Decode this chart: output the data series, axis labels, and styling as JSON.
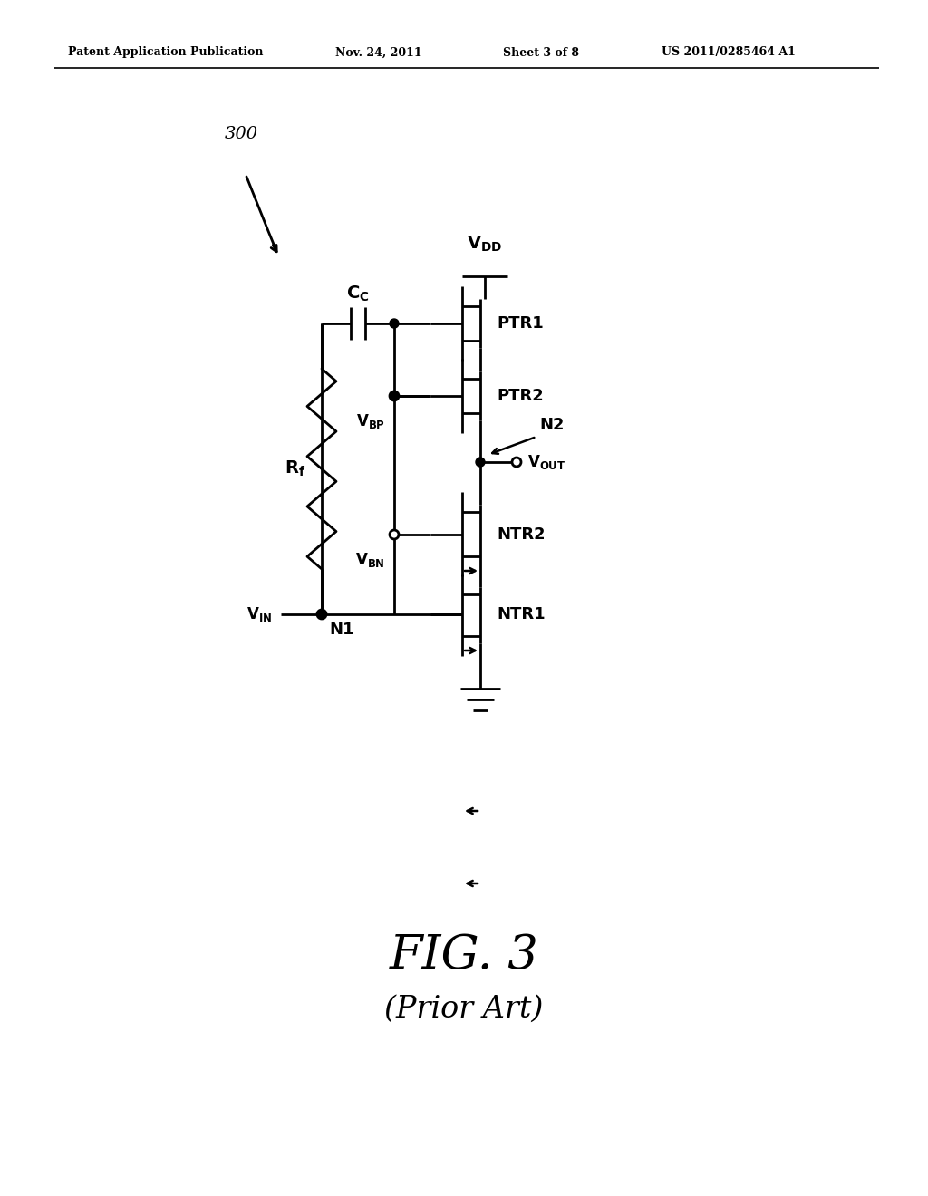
{
  "title_header": "Patent Application Publication",
  "date_header": "Nov. 24, 2011",
  "sheet_header": "Sheet 3 of 8",
  "patent_header": "US 2011/0285464 A1",
  "fig_label": "FIG. 3",
  "fig_sublabel": "(Prior Art)",
  "ref_num": "300",
  "bg_color": "#ffffff",
  "line_color": "#000000",
  "lw": 2.0,
  "tlw": 1.5
}
